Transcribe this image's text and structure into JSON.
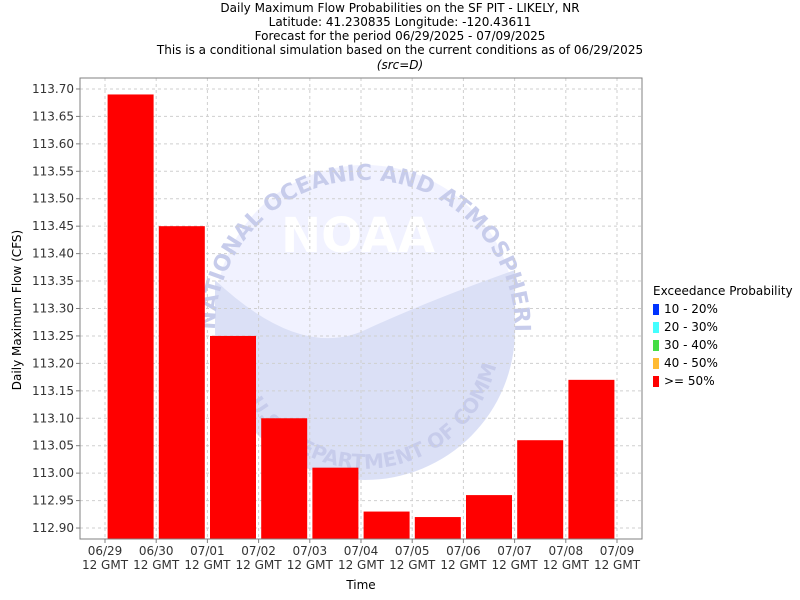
{
  "header": {
    "line1": "Daily Maximum Flow Probabilities on the SF PIT - LIKELY, NR",
    "line2": "Latitude: 41.230835 Longitude: -120.43611",
    "line3": "Forecast for the period 06/29/2025 - 07/09/2025",
    "line4": "This is a conditional simulation based on the current conditions as of 06/29/2025",
    "line5": "(src=D)"
  },
  "legend": {
    "title": "Exceedance Probability",
    "items": [
      {
        "label": "10 - 20%",
        "color": "#0033ff"
      },
      {
        "label": "20 - 30%",
        "color": "#44ffff"
      },
      {
        "label": "30 - 40%",
        "color": "#44dd44"
      },
      {
        "label": "40 - 50%",
        "color": "#ffbb33"
      },
      {
        "label": ">= 50%",
        "color": "#ff0000"
      }
    ]
  },
  "chart_data": {
    "type": "bar",
    "xlabel": "Time",
    "ylabel": "Daily Maximum Flow (CFS)",
    "ylim": [
      112.88,
      113.72
    ],
    "yticks": [
      112.9,
      112.95,
      113.0,
      113.05,
      113.1,
      113.15,
      113.2,
      113.25,
      113.3,
      113.35,
      113.4,
      113.45,
      113.5,
      113.55,
      113.6,
      113.65,
      113.7
    ],
    "xticks": [
      {
        "date": "06/29",
        "time": "12 GMT"
      },
      {
        "date": "06/30",
        "time": "12 GMT"
      },
      {
        "date": "07/01",
        "time": "12 GMT"
      },
      {
        "date": "07/02",
        "time": "12 GMT"
      },
      {
        "date": "07/03",
        "time": "12 GMT"
      },
      {
        "date": "07/04",
        "time": "12 GMT"
      },
      {
        "date": "07/05",
        "time": "12 GMT"
      },
      {
        "date": "07/06",
        "time": "12 GMT"
      },
      {
        "date": "07/07",
        "time": "12 GMT"
      },
      {
        "date": "07/08",
        "time": "12 GMT"
      },
      {
        "date": "07/09",
        "time": "12 GMT"
      }
    ],
    "series": [
      {
        "name": ">= 50%",
        "color": "#ff0000",
        "values": [
          113.69,
          113.45,
          113.25,
          113.1,
          113.01,
          112.93,
          112.92,
          112.96,
          113.06,
          113.17
        ]
      }
    ],
    "grid": true,
    "legend_position": "right"
  },
  "watermark": {
    "text": "NOAA",
    "arc_text": "NATIONAL OCEANIC AND ATMOSPHERIC ADMINISTRATION",
    "bottom_text": "U.S. DEPARTMENT OF COMMERCE"
  }
}
